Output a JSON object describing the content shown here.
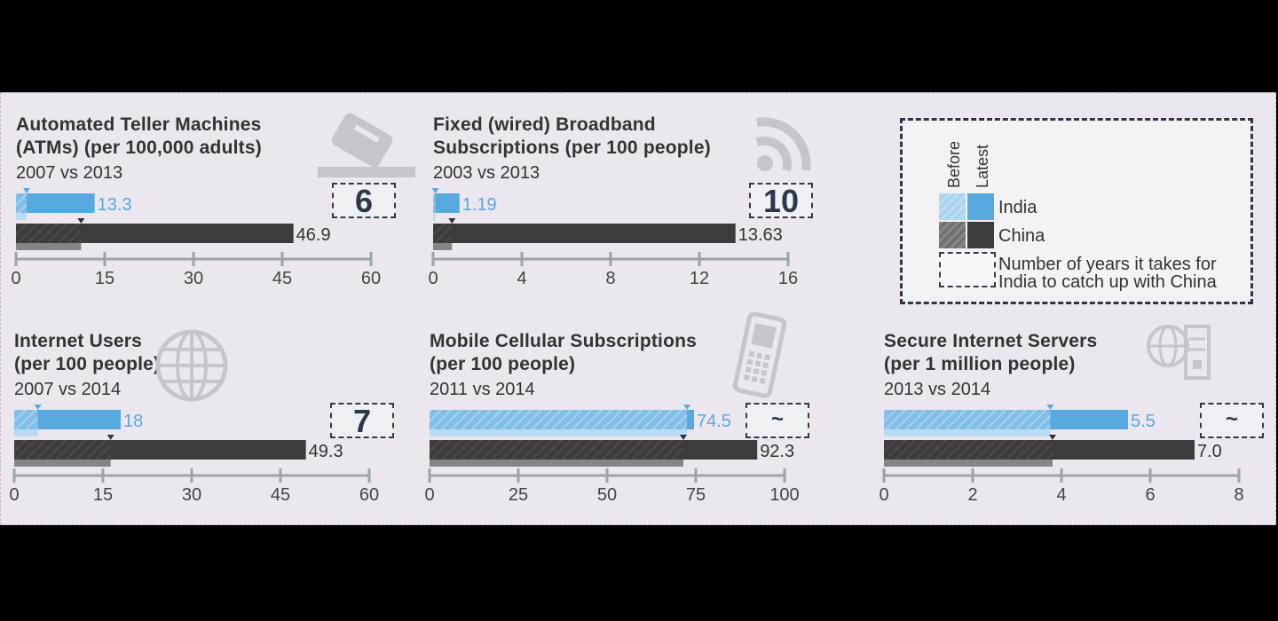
{
  "colors": {
    "india_latest": "#58a9e0",
    "india_before": "#b8dcf4",
    "china_latest": "#3f3b3c",
    "china_before": "#878485",
    "axis": "#9aa6a6",
    "catch_text": "#2e3748"
  },
  "legend": {
    "before_label": "Before",
    "latest_label": "Latest",
    "india_label": "India",
    "china_label": "China",
    "years_label": "Number of years it takes for\nIndia to catch up with China"
  },
  "chart_data": [
    {
      "type": "bar",
      "title": "Automated Teller Machines\n(ATMs) (per 100,000 adults)",
      "subtitle": "2007 vs 2013",
      "icon": "atm-card-icon",
      "catch_up": "6",
      "xlim": [
        0,
        60
      ],
      "ticks": [
        0,
        15,
        30,
        45,
        60
      ],
      "series": [
        {
          "name": "India",
          "before": 1.8,
          "latest": 13.3,
          "label": "13.3"
        },
        {
          "name": "China",
          "before": 11.0,
          "latest": 46.9,
          "label": "46.9"
        }
      ]
    },
    {
      "type": "bar",
      "title": "Fixed (wired) Broadband\nSubscriptions (per 100 people)",
      "subtitle": "2003 vs 2013",
      "icon": "wifi-signal-icon",
      "catch_up": "10",
      "xlim": [
        0,
        16
      ],
      "ticks": [
        0,
        4,
        8,
        12,
        16
      ],
      "series": [
        {
          "name": "India",
          "before": 0.1,
          "latest": 1.19,
          "label": "1.19"
        },
        {
          "name": "China",
          "before": 0.85,
          "latest": 13.63,
          "label": "13.63"
        }
      ]
    },
    {
      "type": "bar",
      "title": "Internet Users\n(per 100 people)",
      "subtitle": "2007 vs 2014",
      "icon": "globe-icon",
      "catch_up": "7",
      "xlim": [
        0,
        60
      ],
      "ticks": [
        0,
        15,
        30,
        45,
        60
      ],
      "series": [
        {
          "name": "India",
          "before": 4,
          "latest": 18,
          "label": "18"
        },
        {
          "name": "China",
          "before": 16.3,
          "latest": 49.3,
          "label": "49.3"
        }
      ]
    },
    {
      "type": "bar",
      "title": "Mobile Cellular Subscriptions\n(per 100 people)",
      "subtitle": "2011 vs 2014",
      "icon": "mobile-phone-icon",
      "catch_up": "~",
      "xlim": [
        0,
        100
      ],
      "ticks": [
        0,
        25,
        50,
        75,
        100
      ],
      "series": [
        {
          "name": "India",
          "before": 72.5,
          "latest": 74.5,
          "label": "74.5"
        },
        {
          "name": "China",
          "before": 71.5,
          "latest": 92.3,
          "label": "92.3"
        }
      ]
    },
    {
      "type": "bar",
      "title": "Secure Internet Servers\n(per 1 million people)",
      "subtitle": "2013 vs 2014",
      "icon": "server-globe-icon",
      "catch_up": "~",
      "xlim": [
        0,
        8
      ],
      "ticks": [
        0,
        2,
        4,
        6,
        8
      ],
      "series": [
        {
          "name": "India",
          "before": 3.75,
          "latest": 5.5,
          "label": "5.5"
        },
        {
          "name": "China",
          "before": 3.8,
          "latest": 7.0,
          "label": "7.0"
        }
      ]
    }
  ]
}
